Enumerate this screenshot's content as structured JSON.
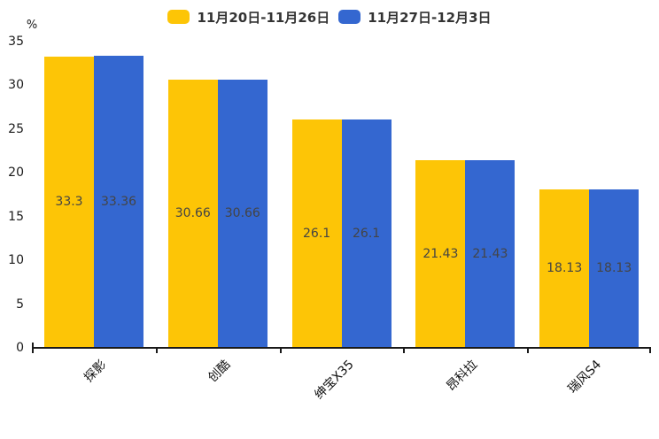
{
  "chart_data": {
    "type": "bar",
    "title": "",
    "xlabel": "",
    "ylabel": "%",
    "ylim": [
      0,
      35
    ],
    "yticks": [
      0,
      5,
      10,
      15,
      20,
      25,
      30,
      35
    ],
    "grid": false,
    "legend_position": "top",
    "value_label_position": "center-of-bar",
    "x_label_rotation": 45,
    "categories": [
      "探影",
      "创酷",
      "绅宝X35",
      "昂科拉",
      "瑞风S4"
    ],
    "series": [
      {
        "name": "11月20日-11月26日",
        "color": "#FDC506",
        "values": [
          33.3,
          30.66,
          26.1,
          21.43,
          18.13
        ]
      },
      {
        "name": "11月27日-12月3日",
        "color": "#3467D0",
        "values": [
          33.36,
          30.66,
          26.1,
          21.43,
          18.13
        ]
      }
    ]
  },
  "style_colors": {
    "series_yellow": "#FDC506",
    "series_blue": "#3467D0",
    "axis": "#1a1a1a",
    "value_label_text": "#444444",
    "background": "#ffffff"
  }
}
